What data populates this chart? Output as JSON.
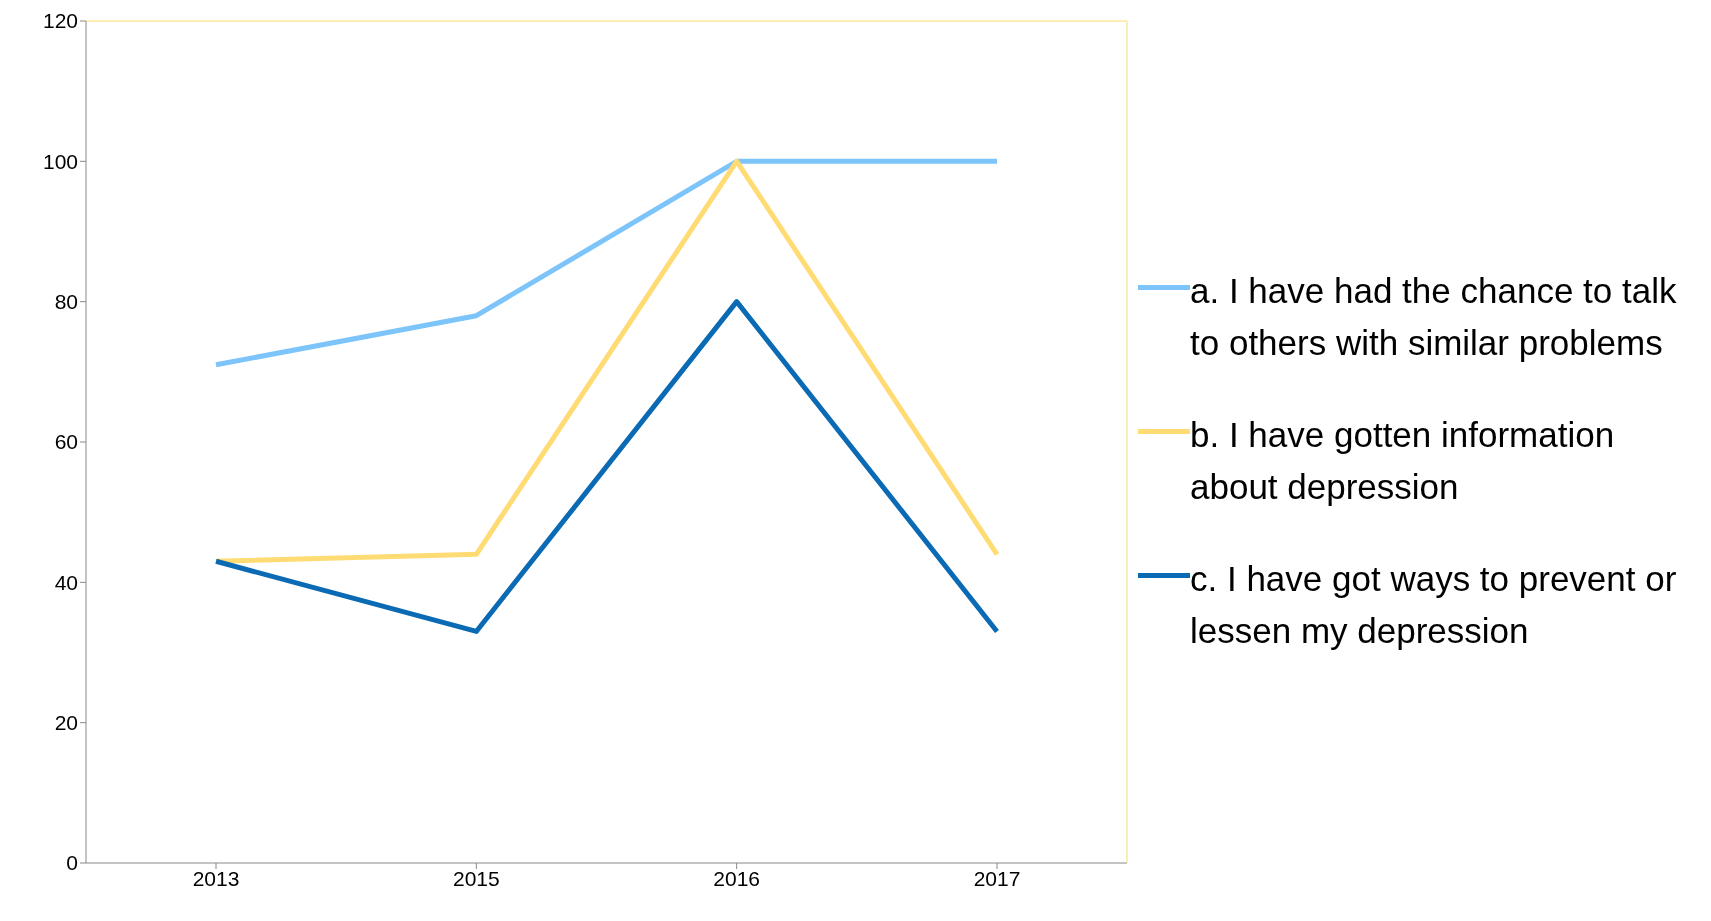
{
  "chart_data": {
    "type": "line",
    "categories": [
      "2013",
      "2015",
      "2016",
      "2017"
    ],
    "series": [
      {
        "name": "a. I have had the chance to talk to others with similar problems",
        "color": "#7cc4fa",
        "values": [
          71,
          78,
          100,
          100
        ]
      },
      {
        "name": "b. I have gotten information about depression",
        "color": "#ffdc73",
        "values": [
          43,
          44,
          100,
          44
        ]
      },
      {
        "name": "c. I have got ways to prevent or lessen my depression",
        "color": "#0a6ab4",
        "values": [
          43,
          33,
          80,
          33
        ]
      }
    ],
    "ylim": [
      0,
      120
    ],
    "yticks": [
      0,
      20,
      40,
      60,
      80,
      100,
      120
    ],
    "grid": false,
    "legend": "right",
    "marker": "none",
    "line_style": "solid"
  }
}
